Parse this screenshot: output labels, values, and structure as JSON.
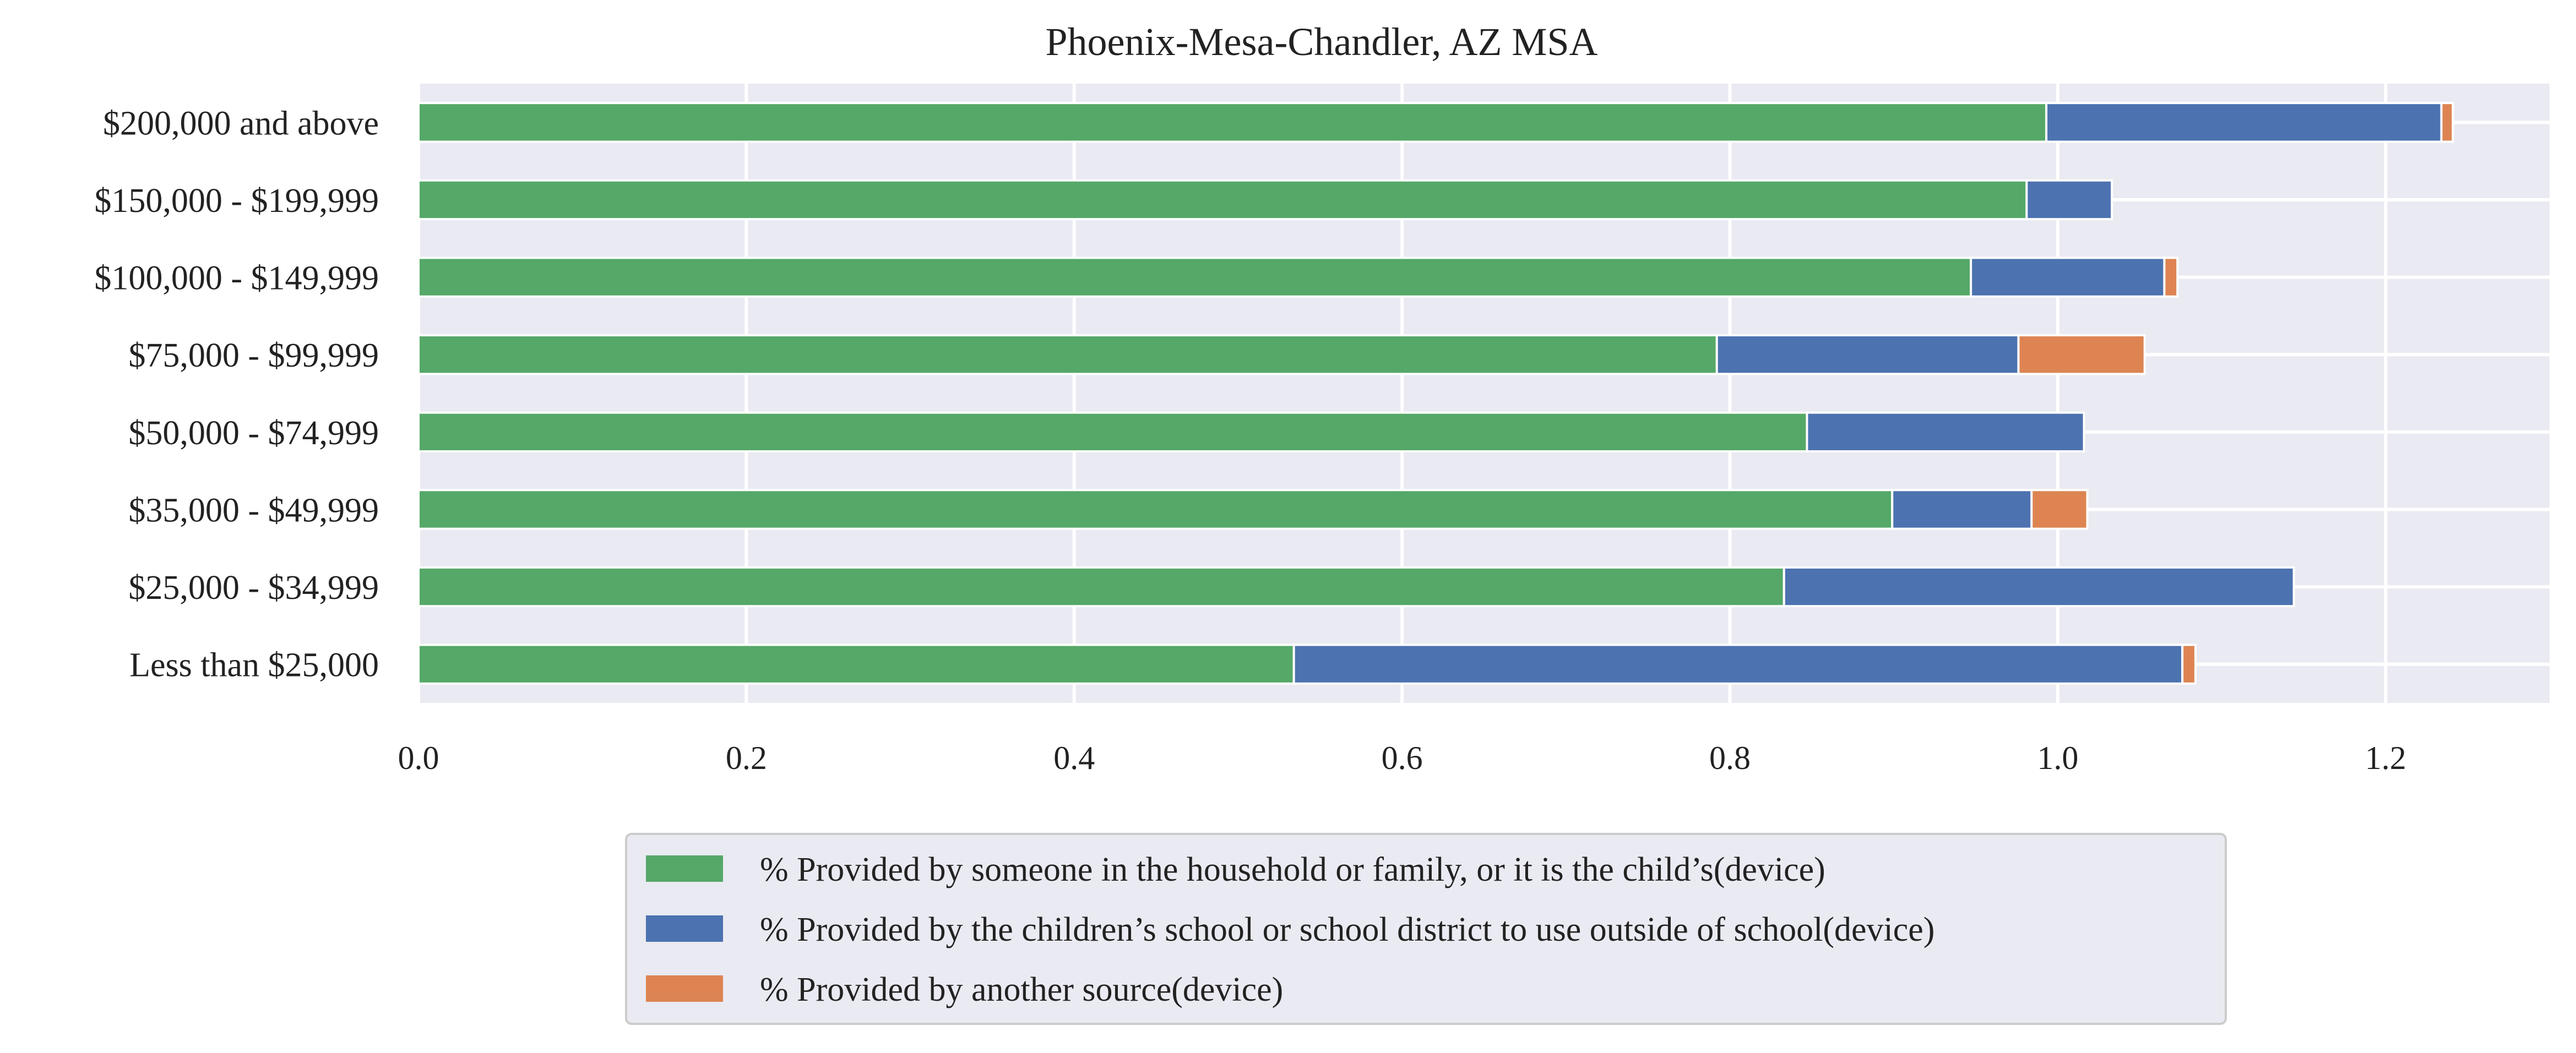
{
  "chart_data": {
    "type": "bar",
    "orientation": "horizontal",
    "stacked": true,
    "title": "Phoenix-Mesa-Chandler, AZ MSA",
    "xlabel": "",
    "ylabel": "",
    "xlim": [
      0,
      1.3
    ],
    "xticks": [
      "0.0",
      "0.2",
      "0.4",
      "0.6",
      "0.8",
      "1.0",
      "1.2"
    ],
    "grid": true,
    "legend_position": "bottom-center",
    "categories": [
      "$200,000 and above",
      "$150,000 - $199,999",
      "$100,000 - $149,999",
      "$75,000 - $99,999",
      "$50,000 - $74,999",
      "$35,000 - $49,999",
      "$25,000 - $34,999",
      "Less than $25,000"
    ],
    "series": [
      {
        "name": "% Provided by someone in the household or family, or it is the child’s(device)",
        "color": "#55a868",
        "values": [
          0.993,
          0.981,
          0.947,
          0.792,
          0.847,
          0.899,
          0.833,
          0.534
        ]
      },
      {
        "name": "% Provided by the children’s school or school district to use outside of school(device)",
        "color": "#4c72b0",
        "values": [
          0.241,
          0.052,
          0.118,
          0.184,
          0.169,
          0.085,
          0.311,
          0.542
        ]
      },
      {
        "name": "% Provided by another source(device)",
        "color": "#dd8452",
        "values": [
          0.007,
          0.0,
          0.008,
          0.077,
          0.0,
          0.034,
          0.0,
          0.008
        ]
      }
    ]
  }
}
